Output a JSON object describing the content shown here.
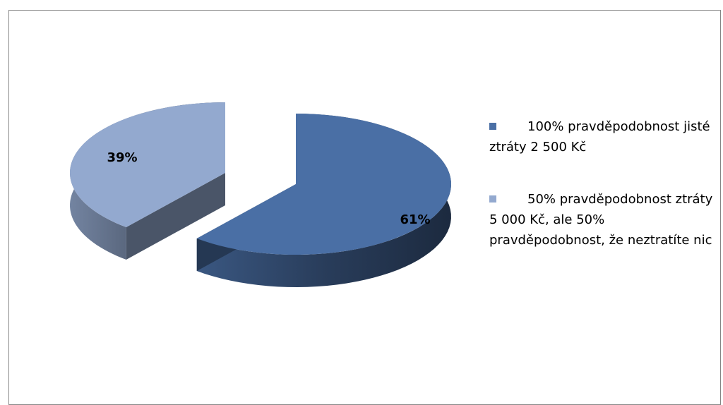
{
  "chart_data": {
    "type": "pie",
    "style": "3d-exploded",
    "title": "",
    "slices": [
      {
        "label": "100% pravděpodobnost jisté ztráty 2 500 Kč",
        "value": 61,
        "value_label": "61%",
        "color": "#4A6FA5"
      },
      {
        "label": "50% pravděpodobnost ztráty 5 000 Kč, ale 50% pravděpodobnost, že neztratíte nic",
        "value": 39,
        "value_label": "39%",
        "color": "#93A9CF"
      }
    ],
    "legend_position": "right"
  }
}
